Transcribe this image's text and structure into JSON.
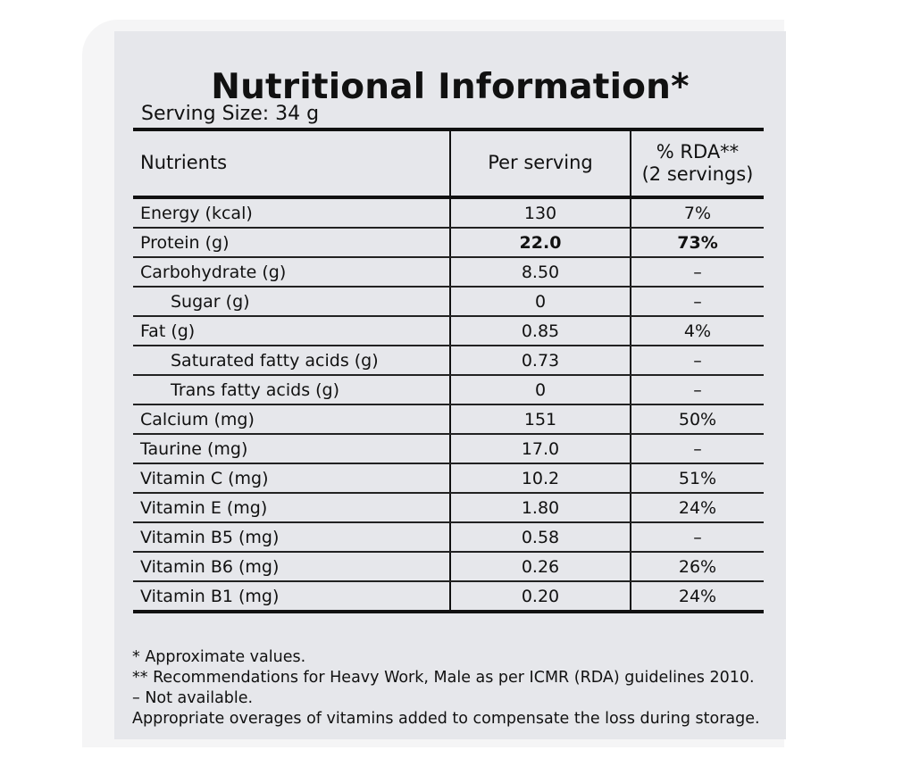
{
  "title": "Nutritional Information*",
  "serving_size": "Serving Size: 34 g",
  "columns": [
    "Nutrients",
    "Per serving",
    "% RDA**",
    "(2 servings)"
  ],
  "rows": [
    {
      "nutrient": "Energy (kcal)",
      "per_serving": "130",
      "rda": "7%"
    },
    {
      "nutrient": "Protein (g)",
      "per_serving": "22.0",
      "rda": "73%"
    },
    {
      "nutrient": "Carbohydrate (g)",
      "per_serving": "8.50",
      "rda": "–"
    },
    {
      "nutrient": "Sugar (g)",
      "per_serving": "0",
      "rda": "–"
    },
    {
      "nutrient": "Fat (g)",
      "per_serving": "0.85",
      "rda": "4%"
    },
    {
      "nutrient": "Saturated fatty acids (g)",
      "per_serving": "0.73",
      "rda": "–"
    },
    {
      "nutrient": "Trans fatty acids (g)",
      "per_serving": "0",
      "rda": "–"
    },
    {
      "nutrient": "Calcium (mg)",
      "per_serving": "151",
      "rda": "50%"
    },
    {
      "nutrient": "Taurine (mg)",
      "per_serving": "17.0",
      "rda": "–"
    },
    {
      "nutrient": "Vitamin C (mg)",
      "per_serving": "10.2",
      "rda": "51%"
    },
    {
      "nutrient": "Vitamin E (mg)",
      "per_serving": "1.80",
      "rda": "24%"
    },
    {
      "nutrient": "Vitamin B5 (mg)",
      "per_serving": "0.58",
      "rda": "–"
    },
    {
      "nutrient": "Vitamin B6 (mg)",
      "per_serving": "0.26",
      "rda": "26%"
    },
    {
      "nutrient": "Vitamin B1 (mg)",
      "per_serving": "0.20",
      "rda": "24%"
    }
  ],
  "footnotes": [
    "* Approximate values.",
    "** Recommendations for Heavy Work, Male as per ICMR (RDA) guidelines 2010.",
    "– Not available.",
    "Appropriate overages of vitamins added to compensate the loss during storage."
  ]
}
